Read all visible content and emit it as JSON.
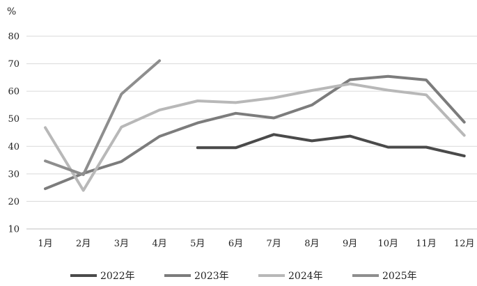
{
  "chart_data": {
    "type": "line",
    "title": "",
    "xlabel": "",
    "ylabel": "%",
    "ylim": [
      10,
      80
    ],
    "yticks": [
      10,
      20,
      30,
      40,
      50,
      60,
      70,
      80
    ],
    "categories": [
      "1月",
      "2月",
      "3月",
      "4月",
      "5月",
      "6月",
      "7月",
      "8月",
      "9月",
      "10月",
      "11月",
      "12月"
    ],
    "grid": true,
    "legend_position": "bottom",
    "series": [
      {
        "name": "2022年",
        "color": "#4a4a4a",
        "values": [
          null,
          null,
          null,
          null,
          39.5,
          39.5,
          44.3,
          42.0,
          43.7,
          39.7,
          39.7,
          36.5
        ]
      },
      {
        "name": "2023年",
        "color": "#7c7c7c",
        "values": [
          24.6,
          30.2,
          34.5,
          43.6,
          48.5,
          52.0,
          50.3,
          55.0,
          64.2,
          65.4,
          64.1,
          48.8
        ]
      },
      {
        "name": "2024年",
        "color": "#b8b8b8",
        "values": [
          46.8,
          24.0,
          47.0,
          53.2,
          56.5,
          55.9,
          57.6,
          60.3,
          62.7,
          60.4,
          58.7,
          44.0
        ]
      },
      {
        "name": "2025年",
        "color": "#8e8e8e",
        "values": [
          34.7,
          29.7,
          59.0,
          71.1,
          null,
          null,
          null,
          null,
          null,
          null,
          null,
          null
        ]
      }
    ]
  }
}
